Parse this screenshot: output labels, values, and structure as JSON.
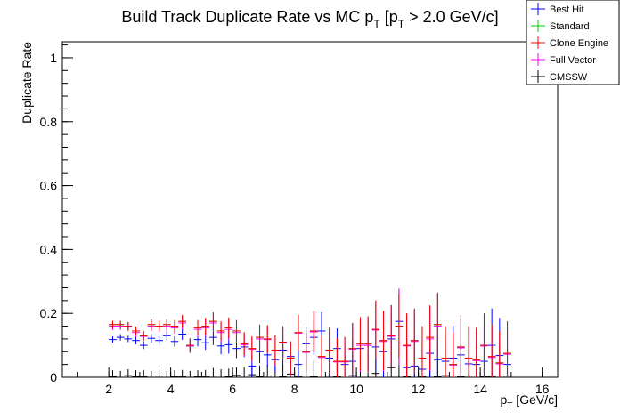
{
  "chart_data": {
    "type": "scatter",
    "title": "Build Track Duplicate Rate vs MC p",
    "title_sub": "T",
    "title_mid": " [p",
    "title_sub2": "T",
    "title_tail": " > 2.0 GeV/c]",
    "xlabel": "p",
    "xlabel_sub": "T",
    "xlabel_tail": " [GeV/c]",
    "ylabel": "Duplicate Rate",
    "xlim": [
      0.5,
      16.5
    ],
    "ylim": [
      0,
      1.05
    ],
    "x_ticks": [
      2,
      4,
      6,
      8,
      10,
      12,
      14,
      16
    ],
    "y_ticks": [
      0,
      0.2,
      0.4,
      0.6,
      0.8,
      1
    ],
    "bin_width": 0.25,
    "x": [
      2.125,
      2.375,
      2.625,
      2.875,
      3.125,
      3.375,
      3.625,
      3.875,
      4.125,
      4.375,
      4.625,
      4.875,
      5.125,
      5.375,
      5.625,
      5.875,
      6.125,
      6.375,
      6.625,
      6.875,
      7.125,
      7.375,
      7.625,
      7.875,
      8.125,
      8.375,
      8.625,
      8.875,
      9.125,
      9.375,
      9.625,
      9.875,
      10.125,
      10.375,
      10.625,
      10.875,
      11.125,
      11.375,
      11.625,
      11.875,
      12.125,
      12.375,
      12.625,
      12.875,
      13.125,
      13.375,
      13.625,
      13.875,
      14.125,
      14.375,
      14.625,
      14.875
    ],
    "series": [
      {
        "name": "Best Hit",
        "color": "#0000ff",
        "values": [
          0.118,
          0.125,
          0.12,
          0.115,
          0.1,
          0.122,
          0.115,
          0.13,
          0.112,
          0.135,
          0.098,
          0.118,
          0.108,
          0.125,
          0.098,
          0.102,
          0.09,
          0.095,
          0.035,
          0.08,
          0.07,
          0.055,
          0.085,
          0.065,
          0.04,
          0.105,
          0.125,
          0.145,
          0.06,
          0.09,
          0.04,
          0.05,
          0.09,
          0.1,
          0.095,
          0.08,
          0.12,
          0.175,
          0.03,
          0.035,
          0.025,
          0.075,
          0.055,
          0.05,
          0.06,
          0.07,
          0.042,
          0.04,
          0.05,
          0.1,
          0.068,
          0.04
        ],
        "errors": [
          0.01,
          0.01,
          0.01,
          0.012,
          0.012,
          0.013,
          0.014,
          0.015,
          0.016,
          0.018,
          0.02,
          0.021,
          0.022,
          0.024,
          0.026,
          0.028,
          0.03,
          0.032,
          0.034,
          0.036,
          0.038,
          0.04,
          0.043,
          0.046,
          0.05,
          0.052,
          0.055,
          0.058,
          0.06,
          0.063,
          0.066,
          0.07,
          0.073,
          0.076,
          0.08,
          0.082,
          0.085,
          0.1,
          0.09,
          0.09,
          0.092,
          0.095,
          0.097,
          0.1,
          0.102,
          0.105,
          0.108,
          0.11,
          0.112,
          0.115,
          0.118,
          0.12
        ]
      },
      {
        "name": "Standard",
        "color": "#00cc00",
        "values": [
          0.165,
          0.165,
          0.16,
          0.145,
          0.13,
          0.165,
          0.16,
          0.165,
          0.16,
          0.175,
          0.1,
          0.155,
          0.16,
          0.175,
          0.145,
          0.155,
          0.145,
          0.105,
          0.09,
          0.125,
          0.12,
          0.085,
          0.11,
          0.06,
          0.14,
          0.08,
          0.145,
          0.065,
          0.085,
          0.05,
          0.05,
          0.09,
          0.105,
          0.105,
          0.15,
          0.115,
          0.13,
          0.16,
          0.1,
          0.115,
          0.06,
          0.125,
          0.165,
          0.06,
          0.04,
          0.095,
          0.06,
          0.055,
          0.1,
          0.065,
          0.045,
          0.075
        ],
        "errors": [
          0.012,
          0.012,
          0.013,
          0.014,
          0.015,
          0.016,
          0.017,
          0.018,
          0.019,
          0.02,
          0.022,
          0.024,
          0.026,
          0.028,
          0.03,
          0.032,
          0.034,
          0.036,
          0.038,
          0.04,
          0.043,
          0.046,
          0.05,
          0.053,
          0.056,
          0.06,
          0.063,
          0.066,
          0.07,
          0.073,
          0.076,
          0.08,
          0.083,
          0.086,
          0.09,
          0.093,
          0.096,
          0.1,
          0.1,
          0.1,
          0.1,
          0.1,
          0.1,
          0.1,
          0.1,
          0.1,
          0.1,
          0.1,
          0.1,
          0.1,
          0.1,
          0.1
        ]
      },
      {
        "name": "Clone Engine",
        "color": "#ff0000",
        "values": [
          0.165,
          0.165,
          0.16,
          0.145,
          0.13,
          0.165,
          0.16,
          0.165,
          0.16,
          0.175,
          0.1,
          0.155,
          0.16,
          0.175,
          0.145,
          0.155,
          0.145,
          0.105,
          0.09,
          0.125,
          0.12,
          0.085,
          0.11,
          0.06,
          0.14,
          0.08,
          0.145,
          0.065,
          0.085,
          0.05,
          0.05,
          0.09,
          0.105,
          0.105,
          0.15,
          0.115,
          0.13,
          0.16,
          0.1,
          0.115,
          0.06,
          0.125,
          0.165,
          0.06,
          0.04,
          0.095,
          0.06,
          0.055,
          0.1,
          0.065,
          0.045,
          0.075
        ],
        "errors": [
          0.012,
          0.012,
          0.013,
          0.014,
          0.015,
          0.016,
          0.017,
          0.018,
          0.019,
          0.02,
          0.022,
          0.024,
          0.026,
          0.028,
          0.03,
          0.032,
          0.034,
          0.036,
          0.038,
          0.04,
          0.043,
          0.046,
          0.05,
          0.053,
          0.056,
          0.06,
          0.063,
          0.066,
          0.07,
          0.073,
          0.076,
          0.08,
          0.083,
          0.086,
          0.09,
          0.093,
          0.096,
          0.1,
          0.1,
          0.1,
          0.1,
          0.1,
          0.1,
          0.1,
          0.1,
          0.1,
          0.1,
          0.1,
          0.1,
          0.1,
          0.1,
          0.1
        ]
      },
      {
        "name": "Full Vector",
        "color": "#ff00ff",
        "values": [
          0.16,
          0.16,
          0.158,
          0.14,
          0.128,
          0.16,
          0.158,
          0.16,
          0.155,
          0.17,
          0.098,
          0.15,
          0.155,
          0.17,
          0.14,
          0.15,
          0.14,
          0.102,
          0.088,
          0.12,
          0.118,
          0.082,
          0.108,
          0.058,
          0.138,
          0.078,
          0.142,
          0.062,
          0.082,
          0.048,
          0.048,
          0.088,
          0.1,
          0.1,
          0.148,
          0.112,
          0.128,
          0.158,
          0.098,
          0.112,
          0.058,
          0.12,
          0.16,
          0.058,
          0.038,
          0.092,
          0.058,
          0.052,
          0.098,
          0.062,
          0.042,
          0.072
        ],
        "errors": [
          0.012,
          0.012,
          0.013,
          0.014,
          0.015,
          0.016,
          0.017,
          0.018,
          0.019,
          0.02,
          0.022,
          0.024,
          0.026,
          0.028,
          0.03,
          0.032,
          0.034,
          0.036,
          0.038,
          0.04,
          0.043,
          0.046,
          0.05,
          0.053,
          0.056,
          0.06,
          0.063,
          0.066,
          0.07,
          0.073,
          0.076,
          0.08,
          0.083,
          0.086,
          0.09,
          0.093,
          0.096,
          0.12,
          0.1,
          0.1,
          0.1,
          0.1,
          0.1,
          0.1,
          0.1,
          0.1,
          0.1,
          0.1,
          0.1,
          0.1,
          0.1,
          0.1
        ]
      },
      {
        "name": "CMSSW",
        "color": "#000000",
        "values": [
          0.002,
          0.0,
          0.005,
          0.002,
          0.003,
          0.0,
          0.004,
          0.0,
          0.002,
          0.003,
          0.0,
          0.002,
          0.003,
          0.004,
          0.0,
          0.002,
          0.006,
          0.0,
          0.008,
          0.002,
          0.004,
          0.0,
          0.002,
          0.01,
          0.003,
          0.0,
          0.002,
          0.0,
          0.004,
          0.002,
          0.0,
          0.005,
          0.0,
          0.0,
          0.012,
          0.0,
          0.03,
          0.0,
          0.002,
          0.0,
          0.003,
          0.0,
          0.002,
          0.005,
          0.0,
          0.002,
          0.004,
          0.0,
          0.002,
          0.003,
          0.0,
          0.004
        ],
        "errors": [
          0.02,
          0.02,
          0.02,
          0.02,
          0.02,
          0.02,
          0.02,
          0.02,
          0.02,
          0.02,
          0.02,
          0.02,
          0.02,
          0.025,
          0.025,
          0.025,
          0.025,
          0.03,
          0.03,
          0.035,
          0.035,
          0.04,
          0.04,
          0.045,
          0.05,
          0.05,
          0.05,
          0.06,
          0.06,
          0.06,
          0.065,
          0.07,
          0.07,
          0.07,
          0.075,
          0.08,
          0.085,
          0.08,
          0.085,
          0.09,
          0.09,
          0.09,
          0.095,
          0.1,
          0.1,
          0.1,
          0.1,
          0.1,
          0.1,
          0.1,
          0.1,
          0.1
        ]
      }
    ],
    "legend": {
      "placement": "top-right",
      "entries": [
        "Best Hit",
        "Standard",
        "Clone Engine",
        "Full Vector",
        "CMSSW"
      ]
    }
  }
}
